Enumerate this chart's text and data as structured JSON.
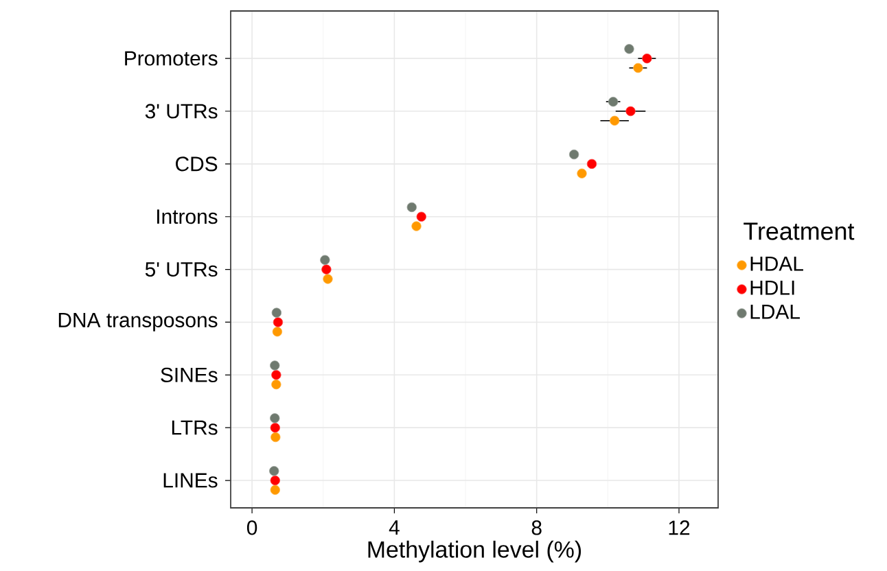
{
  "chart_data": {
    "type": "scatter",
    "orientation": "horizontal",
    "xlabel": "Methylation level (%)",
    "legend_title": "Treatment",
    "categories": [
      "Promoters",
      "3' UTRs",
      "CDS",
      "Introns",
      "5' UTRs",
      "DNA transposons",
      "SINEs",
      "LTRs",
      "LINEs"
    ],
    "series": [
      {
        "name": "HDAL",
        "color": "#ff9900",
        "values": [
          10.85,
          10.19,
          9.27,
          4.62,
          2.13,
          0.71,
          0.68,
          0.66,
          0.65
        ],
        "errors": [
          0.25,
          0.4,
          null,
          null,
          null,
          null,
          null,
          null,
          null
        ]
      },
      {
        "name": "HDLI",
        "color": "#ff0000",
        "values": [
          11.1,
          10.64,
          9.55,
          4.76,
          2.09,
          0.73,
          0.68,
          0.65,
          0.65
        ],
        "errors": [
          0.25,
          0.42,
          null,
          null,
          null,
          null,
          null,
          null,
          null
        ]
      },
      {
        "name": "LDAL",
        "color": "#6f7a6f",
        "values": [
          10.6,
          10.15,
          9.05,
          4.49,
          2.05,
          0.69,
          0.64,
          0.64,
          0.62
        ],
        "errors": [
          null,
          0.2,
          null,
          null,
          null,
          null,
          null,
          null,
          null
        ]
      }
    ],
    "xlim": [
      -0.6,
      13.1
    ],
    "xticks": [
      0,
      4,
      8,
      12
    ],
    "grid": true,
    "legend": "right"
  }
}
